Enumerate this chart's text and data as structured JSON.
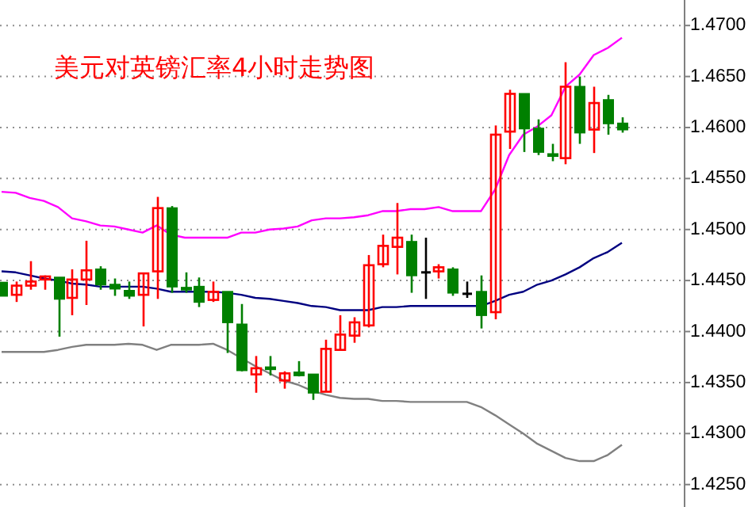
{
  "chart_data": {
    "type": "candlestick",
    "title": "美元对英镑汇率4小时走势图",
    "categories": [
      null,
      null,
      null,
      null,
      null,
      null,
      null,
      null,
      null,
      null,
      null,
      null,
      null,
      null,
      null,
      null,
      null,
      null,
      null,
      null,
      null,
      null,
      null,
      null,
      null,
      null,
      null,
      null,
      null,
      null,
      null,
      null,
      null,
      null,
      null,
      null,
      null,
      null,
      null,
      null,
      null,
      null,
      null,
      null,
      null
    ],
    "ohlc": [
      [
        1.4448,
        1.4448,
        1.4435,
        1.4435
      ],
      [
        1.4436,
        1.4449,
        1.4429,
        1.4445
      ],
      [
        1.4445,
        1.4469,
        1.4441,
        1.4449
      ],
      [
        1.4451,
        1.4455,
        1.4441,
        1.4454
      ],
      [
        1.4453,
        1.4453,
        1.4395,
        1.4432
      ],
      [
        1.4433,
        1.4461,
        1.4416,
        1.4451
      ],
      [
        1.4451,
        1.4489,
        1.4426,
        1.446
      ],
      [
        1.4461,
        1.4464,
        1.4441,
        1.4446
      ],
      [
        1.4446,
        1.4452,
        1.4435,
        1.4442
      ],
      [
        1.444,
        1.4449,
        1.4432,
        1.4435
      ],
      [
        1.4436,
        1.4457,
        1.4405,
        1.4457
      ],
      [
        1.4459,
        1.4532,
        1.4432,
        1.4521
      ],
      [
        1.4521,
        1.4523,
        1.4438,
        1.4444
      ],
      [
        1.4443,
        1.4458,
        1.4438,
        1.4441
      ],
      [
        1.4444,
        1.4453,
        1.4424,
        1.4429
      ],
      [
        1.4431,
        1.4449,
        1.4429,
        1.4439
      ],
      [
        1.4439,
        1.4439,
        1.4379,
        1.4409
      ],
      [
        1.4407,
        1.4427,
        1.4361,
        1.4362
      ],
      [
        1.4358,
        1.4376,
        1.434,
        1.4364
      ],
      [
        1.4365,
        1.4376,
        1.4357,
        1.4363
      ],
      [
        1.4352,
        1.4361,
        1.4344,
        1.4359
      ],
      [
        1.436,
        1.4371,
        1.4356,
        1.4357
      ],
      [
        1.4358,
        1.4358,
        1.4333,
        1.434
      ],
      [
        1.4341,
        1.4392,
        1.4341,
        1.4383
      ],
      [
        1.4382,
        1.4416,
        1.4381,
        1.4397
      ],
      [
        1.4396,
        1.4414,
        1.4389,
        1.4409
      ],
      [
        1.4406,
        1.4475,
        1.4404,
        1.4465
      ],
      [
        1.4466,
        1.4495,
        1.4463,
        1.4484
      ],
      [
        1.4483,
        1.4526,
        1.4456,
        1.4492
      ],
      [
        1.4488,
        1.4495,
        1.4438,
        1.4455
      ],
      [
        1.4458,
        1.4492,
        1.4432,
        1.4458
      ],
      [
        1.4459,
        1.4466,
        1.4452,
        1.4463
      ],
      [
        1.4461,
        1.4463,
        1.4435,
        1.4438
      ],
      [
        1.4437,
        1.4449,
        1.4433,
        1.4437
      ],
      [
        1.4439,
        1.4455,
        1.4403,
        1.4416
      ],
      [
        1.4419,
        1.4602,
        1.4412,
        1.4593
      ],
      [
        1.4596,
        1.4637,
        1.4579,
        1.4633
      ],
      [
        1.4633,
        1.4633,
        1.4576,
        1.4599
      ],
      [
        1.4599,
        1.4608,
        1.4573,
        1.4576
      ],
      [
        1.4574,
        1.4584,
        1.4567,
        1.4572
      ],
      [
        1.457,
        1.4664,
        1.4564,
        1.464
      ],
      [
        1.464,
        1.465,
        1.4584,
        1.4595
      ],
      [
        1.4598,
        1.464,
        1.4575,
        1.4624
      ],
      [
        1.4627,
        1.4632,
        1.4593,
        1.4604
      ],
      [
        1.4604,
        1.461,
        1.4595,
        1.4598
      ]
    ],
    "colors": [
      "#008000",
      "#ff0000",
      "#ff0000",
      "#ff0000",
      "#008000",
      "#ff0000",
      "#ff0000",
      "#008000",
      "#008000",
      "#008000",
      "#ff0000",
      "#ff0000",
      "#008000",
      "#008000",
      "#008000",
      "#ff0000",
      "#008000",
      "#008000",
      "#ff0000",
      "#008000",
      "#ff0000",
      "#008000",
      "#008000",
      "#ff0000",
      "#ff0000",
      "#ff0000",
      "#ff0000",
      "#ff0000",
      "#ff0000",
      "#008000",
      "#000000",
      "#ff0000",
      "#008000",
      "#000000",
      "#008000",
      "#ff0000",
      "#ff0000",
      "#008000",
      "#008000",
      "#008000",
      "#ff0000",
      "#008000",
      "#ff0000",
      "#008000",
      "#008000"
    ],
    "series": [
      {
        "type": "line",
        "color": "#ff00ff",
        "values": [
          1.4537,
          1.4536,
          1.4531,
          1.4528,
          1.4522,
          1.4511,
          1.4508,
          1.4504,
          1.4503,
          1.45,
          1.4497,
          1.4504,
          1.4495,
          1.4492,
          1.4492,
          1.4492,
          1.4492,
          1.4497,
          1.4497,
          1.45,
          1.4501,
          1.4503,
          1.4509,
          1.4511,
          1.4511,
          1.4512,
          1.4514,
          1.4518,
          1.4518,
          1.452,
          1.452,
          1.4522,
          1.4518,
          1.4518,
          1.4518,
          1.4539,
          1.4573,
          1.4593,
          1.4601,
          1.4612,
          1.464,
          1.4652,
          1.4671,
          1.4678,
          1.4688
        ]
      },
      {
        "type": "line",
        "color": "#000080",
        "values": [
          1.4459,
          1.4458,
          1.4455,
          1.4452,
          1.445,
          1.4447,
          1.4446,
          1.4444,
          1.4444,
          1.4444,
          1.4444,
          1.4442,
          1.4439,
          1.4439,
          1.4439,
          1.4439,
          1.4438,
          1.4436,
          1.4433,
          1.4432,
          1.443,
          1.4428,
          1.4425,
          1.4424,
          1.4421,
          1.4421,
          1.4421,
          1.4424,
          1.4424,
          1.4425,
          1.4425,
          1.4425,
          1.4425,
          1.4425,
          1.4425,
          1.443,
          1.4436,
          1.4439,
          1.4446,
          1.445,
          1.4456,
          1.4463,
          1.4472,
          1.4478,
          1.4487
        ]
      },
      {
        "type": "line",
        "color": "#808080",
        "values": [
          1.438,
          1.438,
          1.438,
          1.438,
          1.4382,
          1.4385,
          1.4387,
          1.4387,
          1.4387,
          1.4388,
          1.4387,
          1.4382,
          1.4387,
          1.4387,
          1.4387,
          1.4388,
          1.4382,
          1.4374,
          1.4366,
          1.4359,
          1.4352,
          1.4348,
          1.4342,
          1.4338,
          1.4335,
          1.4334,
          1.4334,
          1.4332,
          1.4332,
          1.4331,
          1.4331,
          1.4331,
          1.4331,
          1.4331,
          1.4326,
          1.4318,
          1.4309,
          1.43,
          1.429,
          1.4283,
          1.4276,
          1.4273,
          1.4273,
          1.4279,
          1.4289
        ]
      }
    ],
    "ylim": [
      1.4228,
      1.4725
    ],
    "yticks": [
      {
        "value": 1.425,
        "label": "1.4250"
      },
      {
        "value": 1.43,
        "label": "1.4300"
      },
      {
        "value": 1.435,
        "label": "1.4350"
      },
      {
        "value": 1.44,
        "label": "1.4400"
      },
      {
        "value": 1.445,
        "label": "1.4450"
      },
      {
        "value": 1.45,
        "label": "1.4500"
      },
      {
        "value": 1.455,
        "label": "1.4550"
      },
      {
        "value": 1.46,
        "label": "1.4600"
      },
      {
        "value": 1.465,
        "label": "1.4650"
      },
      {
        "value": 1.47,
        "label": "1.4700"
      }
    ],
    "grid": "y",
    "tick_labels": "y"
  }
}
